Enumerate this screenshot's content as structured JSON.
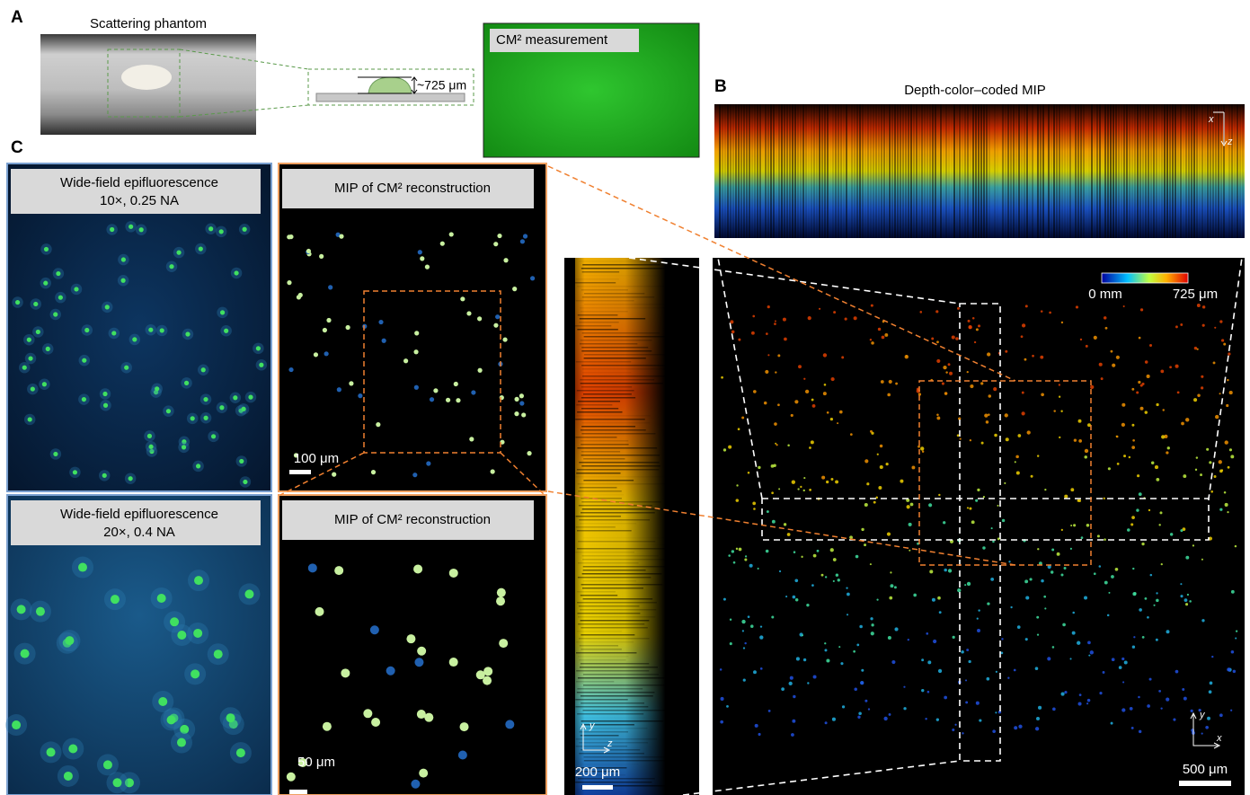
{
  "panels": {
    "A": {
      "label": "A",
      "title": "Scattering phantom",
      "thickness": "~725 μm",
      "measurement": "CM² measurement"
    },
    "B": {
      "label": "B",
      "title": "Depth-color–coded MIP",
      "axes": [
        "x",
        "z"
      ]
    },
    "C": {
      "label": "C",
      "tiles": [
        {
          "caption": [
            "Wide-field epifluorescence",
            "10×, 0.25 NA"
          ]
        },
        {
          "caption": [
            "MIP of CM² reconstruction"
          ],
          "scale_bar": "100 μm"
        },
        {
          "caption": [
            "Wide-field epifluorescence",
            "20×, 0.4 NA"
          ]
        },
        {
          "caption": [
            "MIP of CM² reconstruction"
          ],
          "scale_bar": "50 μm"
        }
      ]
    },
    "side_view": {
      "scale_bar": "200 μm",
      "axes": [
        "y",
        "z"
      ]
    },
    "top_view": {
      "colorbar": [
        "0 mm",
        "725 μm"
      ],
      "scale_bar": "500 μm",
      "axes": [
        "y",
        "x"
      ]
    }
  }
}
